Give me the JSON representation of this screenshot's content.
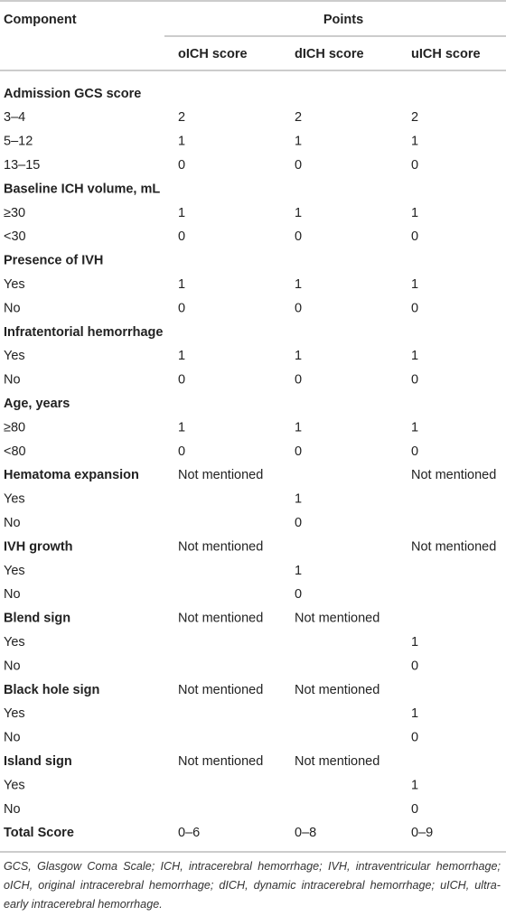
{
  "table": {
    "header": {
      "component": "Component",
      "points": "Points",
      "columns": [
        "oICH score",
        "dICH score",
        "uICH score"
      ]
    },
    "rows": [
      {
        "bold": true,
        "cells": [
          "Admission GCS score",
          null,
          null,
          null
        ]
      },
      {
        "cells": [
          "3–4",
          2,
          2,
          2
        ]
      },
      {
        "cells": [
          "5–12",
          1,
          1,
          1
        ]
      },
      {
        "cells": [
          "13–15",
          0,
          0,
          0
        ]
      },
      {
        "bold": true,
        "cells": [
          "Baseline ICH volume, mL",
          null,
          null,
          null
        ]
      },
      {
        "cells": [
          "≥30",
          1,
          1,
          1
        ]
      },
      {
        "cells": [
          "<30",
          0,
          0,
          0
        ]
      },
      {
        "bold": true,
        "cells": [
          "Presence of IVH",
          null,
          null,
          null
        ]
      },
      {
        "cells": [
          "Yes",
          1,
          1,
          1
        ]
      },
      {
        "cells": [
          "No",
          0,
          0,
          0
        ]
      },
      {
        "bold": true,
        "cells": [
          "Infratentorial hemorrhage",
          null,
          null,
          null
        ]
      },
      {
        "cells": [
          "Yes",
          1,
          1,
          1
        ]
      },
      {
        "cells": [
          "No",
          0,
          0,
          0
        ]
      },
      {
        "bold": true,
        "cells": [
          "Age, years",
          null,
          null,
          null
        ]
      },
      {
        "cells": [
          "≥80",
          1,
          1,
          1
        ]
      },
      {
        "cells": [
          "<80",
          0,
          0,
          0
        ]
      },
      {
        "bold": true,
        "cells": [
          "Hematoma expansion",
          "Not mentioned",
          null,
          "Not mentioned"
        ]
      },
      {
        "cells": [
          "Yes",
          null,
          1,
          null
        ]
      },
      {
        "cells": [
          "No",
          null,
          0,
          null
        ]
      },
      {
        "bold": true,
        "cells": [
          "IVH growth",
          "Not mentioned",
          null,
          "Not mentioned"
        ]
      },
      {
        "cells": [
          "Yes",
          null,
          1,
          null
        ]
      },
      {
        "cells": [
          "No",
          null,
          0,
          null
        ]
      },
      {
        "bold": true,
        "cells": [
          "Blend sign",
          "Not mentioned",
          "Not mentioned",
          null
        ]
      },
      {
        "cells": [
          "Yes",
          null,
          null,
          1
        ]
      },
      {
        "cells": [
          "No",
          null,
          null,
          0
        ]
      },
      {
        "bold": true,
        "cells": [
          "Black hole sign",
          "Not mentioned",
          "Not mentioned",
          null
        ]
      },
      {
        "cells": [
          "Yes",
          null,
          null,
          1
        ]
      },
      {
        "cells": [
          "No",
          null,
          null,
          0
        ]
      },
      {
        "bold": true,
        "cells": [
          "Island sign",
          "Not mentioned",
          "Not mentioned",
          null
        ]
      },
      {
        "cells": [
          "Yes",
          null,
          null,
          1
        ]
      },
      {
        "cells": [
          "No",
          null,
          null,
          0
        ]
      },
      {
        "bold": true,
        "cells": [
          "Total Score",
          "0–6",
          "0–8",
          "0–9"
        ]
      }
    ],
    "footnote": "GCS, Glasgow Coma Scale; ICH, intracerebral hemorrhage; IVH, intraventricular hemorrhage; oICH, original intracerebral hemorrhage; dICH, dynamic intracerebral hemorrhage; uICH, ultra-early intracerebral hemorrhage."
  }
}
